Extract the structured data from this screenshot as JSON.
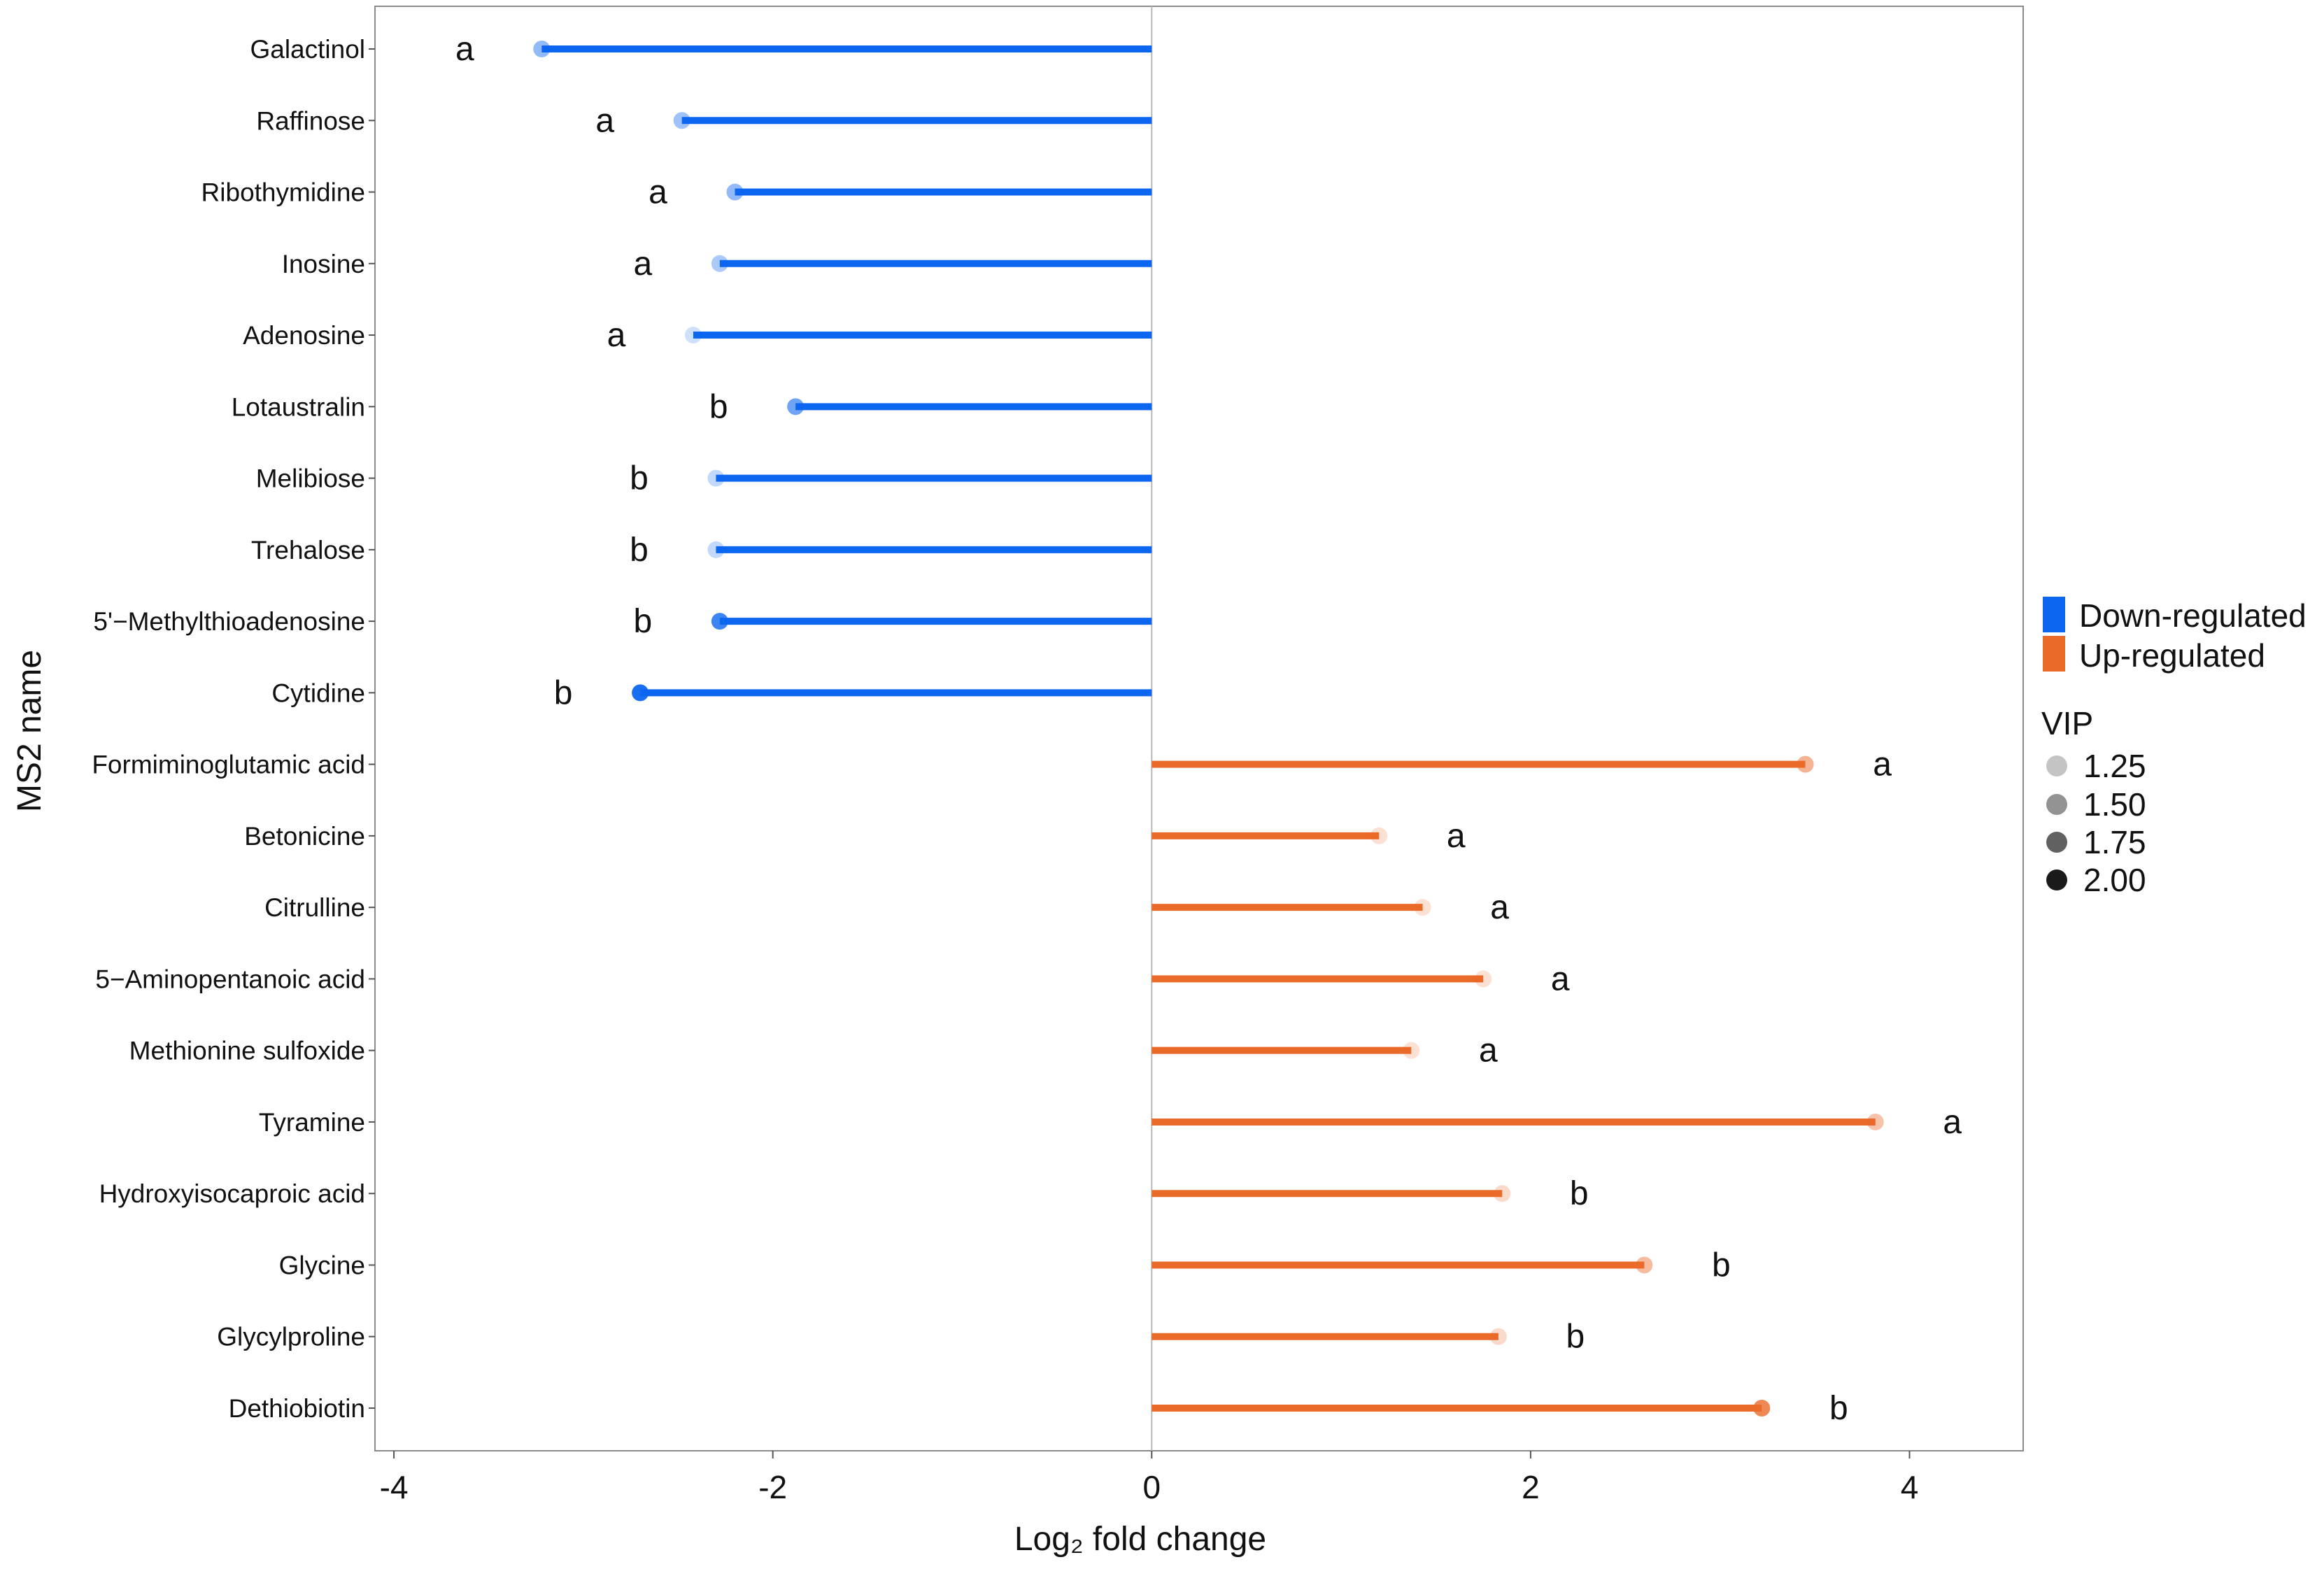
{
  "chart_data": {
    "type": "lollipop",
    "xlabel": "Log₂ fold change",
    "ylabel": "MS2 name",
    "xlim": [
      -4.1,
      4.6
    ],
    "x_ticks": [
      -4,
      -2,
      0,
      2,
      4
    ],
    "grid": false,
    "legend_position": "right",
    "colors": {
      "Down-regulated": "#0d66f0",
      "Up-regulated": "#ea6a2a"
    },
    "color_legend": [
      "Down-regulated",
      "Up-regulated"
    ],
    "vip_legend": {
      "title": "VIP",
      "values": [
        "1.25",
        "1.50",
        "1.75",
        "2.00"
      ]
    },
    "vip_range": [
      1.2,
      2.05
    ],
    "items": [
      {
        "name": "Galactinol",
        "value": -3.22,
        "vip": 1.5,
        "group": "Down-regulated",
        "label": "a"
      },
      {
        "name": "Raffinose",
        "value": -2.48,
        "vip": 1.45,
        "group": "Down-regulated",
        "label": "a"
      },
      {
        "name": "Ribothymidine",
        "value": -2.2,
        "vip": 1.5,
        "group": "Down-regulated",
        "label": "a"
      },
      {
        "name": "Inosine",
        "value": -2.28,
        "vip": 1.4,
        "group": "Down-regulated",
        "label": "a"
      },
      {
        "name": "Adenosine",
        "value": -2.42,
        "vip": 1.25,
        "group": "Down-regulated",
        "label": "a"
      },
      {
        "name": "Lotaustralin",
        "value": -1.88,
        "vip": 1.65,
        "group": "Down-regulated",
        "label": "b"
      },
      {
        "name": "Melibiose",
        "value": -2.3,
        "vip": 1.3,
        "group": "Down-regulated",
        "label": "b"
      },
      {
        "name": "Trehalose",
        "value": -2.3,
        "vip": 1.3,
        "group": "Down-regulated",
        "label": "b"
      },
      {
        "name": "5'−Methylthioadenosine",
        "value": -2.28,
        "vip": 1.85,
        "group": "Down-regulated",
        "label": "b"
      },
      {
        "name": "Cytidine",
        "value": -2.7,
        "vip": 2.0,
        "group": "Down-regulated",
        "label": "b"
      },
      {
        "name": "Formiminoglutamic acid",
        "value": 3.45,
        "vip": 1.55,
        "group": "Up-regulated",
        "label": "a"
      },
      {
        "name": "Betonicine",
        "value": 1.2,
        "vip": 1.25,
        "group": "Up-regulated",
        "label": "a"
      },
      {
        "name": "Citrulline",
        "value": 1.43,
        "vip": 1.25,
        "group": "Up-regulated",
        "label": "a"
      },
      {
        "name": "5−Aminopentanoic acid",
        "value": 1.75,
        "vip": 1.25,
        "group": "Up-regulated",
        "label": "a"
      },
      {
        "name": "Methionine sulfoxide",
        "value": 1.37,
        "vip": 1.25,
        "group": "Up-regulated",
        "label": "a"
      },
      {
        "name": "Tyramine",
        "value": 3.82,
        "vip": 1.45,
        "group": "Up-regulated",
        "label": "a"
      },
      {
        "name": "Hydroxyisocaproic acid",
        "value": 1.85,
        "vip": 1.3,
        "group": "Up-regulated",
        "label": "b"
      },
      {
        "name": "Glycine",
        "value": 2.6,
        "vip": 1.5,
        "group": "Up-regulated",
        "label": "b"
      },
      {
        "name": "Glycylproline",
        "value": 1.83,
        "vip": 1.3,
        "group": "Up-regulated",
        "label": "b"
      },
      {
        "name": "Dethiobiotin",
        "value": 3.22,
        "vip": 1.85,
        "group": "Up-regulated",
        "label": "b"
      }
    ]
  }
}
